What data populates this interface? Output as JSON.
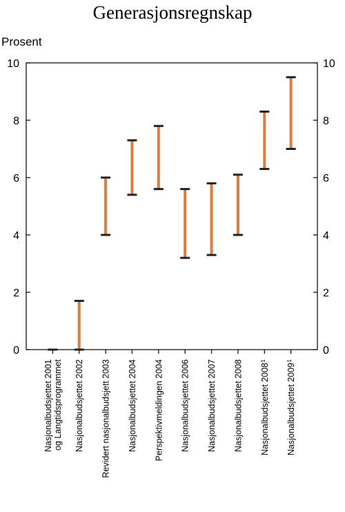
{
  "chart_data": {
    "type": "range",
    "title": "Generasjonsregnskap",
    "ylabel": "Prosent",
    "ylim": [
      0,
      10
    ],
    "yticks": [
      0,
      2,
      4,
      6,
      8,
      10
    ],
    "grid": false,
    "range_color": "#E07B39",
    "cap_color": "#222222",
    "categories": [
      {
        "lines": [
          "Nasjonalbudsjettet 2001",
          "og Langtidsprogrammet"
        ],
        "sup": "",
        "low": 0.0,
        "high": 0.0
      },
      {
        "lines": [
          "Nasjonalbudsjettet  2002"
        ],
        "sup": "",
        "low": 0.0,
        "high": 1.7
      },
      {
        "lines": [
          "Revidert nasjonalbudsjett  2003"
        ],
        "sup": "",
        "low": 4.0,
        "high": 6.0
      },
      {
        "lines": [
          "Nasjonalbudsjettet 2004"
        ],
        "sup": "",
        "low": 5.4,
        "high": 7.3
      },
      {
        "lines": [
          "Perspektivmeldingen 2004"
        ],
        "sup": "",
        "low": 5.6,
        "high": 7.8
      },
      {
        "lines": [
          "Nasjonalbudsjettet 2006"
        ],
        "sup": "",
        "low": 3.2,
        "high": 5.6
      },
      {
        "lines": [
          "Nasjonalbudsjettet 2007"
        ],
        "sup": "",
        "low": 3.3,
        "high": 5.8
      },
      {
        "lines": [
          "Nasjonalbudsjettet 2008"
        ],
        "sup": "",
        "low": 4.0,
        "high": 6.1
      },
      {
        "lines": [
          "Nasjonalbudsjettet 2008"
        ],
        "sup": "1",
        "low": 6.3,
        "high": 8.3
      },
      {
        "lines": [
          "Nasjonalbudsjettet 2009"
        ],
        "sup": "1",
        "low": 7.0,
        "high": 9.5
      }
    ]
  }
}
